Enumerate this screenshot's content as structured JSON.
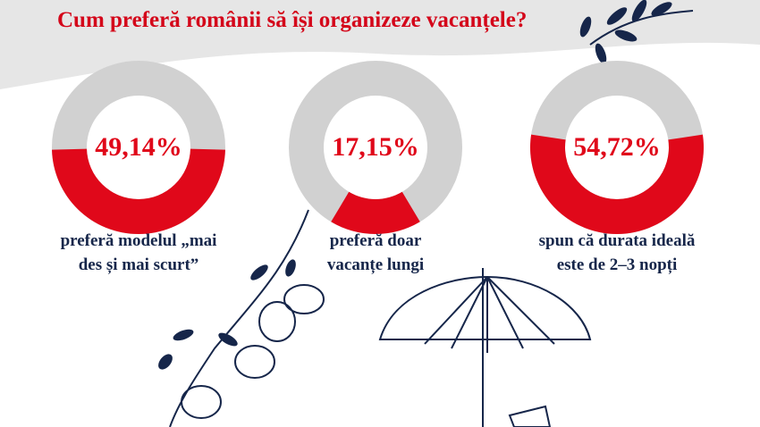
{
  "title": "Cum preferă românii să își organizeze vacanțele?",
  "chart_data": [
    {
      "type": "donut",
      "values": [
        49.14
      ],
      "value_labels": [
        "49,14%"
      ],
      "color": "#e0081a",
      "caption": [
        "preferă modelul „mai",
        "des și mai scurt”"
      ]
    },
    {
      "type": "donut",
      "values": [
        17.15
      ],
      "value_labels": [
        "17,15%"
      ],
      "color": "#e0081a",
      "caption": [
        "preferă doar",
        "vacanțe lungi"
      ]
    },
    {
      "type": "donut",
      "values": [
        54.72
      ],
      "value_labels": [
        "54,72%"
      ],
      "color": "#e0081a",
      "caption": [
        "spun că durata ideală",
        "este de 2–3 nopți"
      ]
    }
  ]
}
